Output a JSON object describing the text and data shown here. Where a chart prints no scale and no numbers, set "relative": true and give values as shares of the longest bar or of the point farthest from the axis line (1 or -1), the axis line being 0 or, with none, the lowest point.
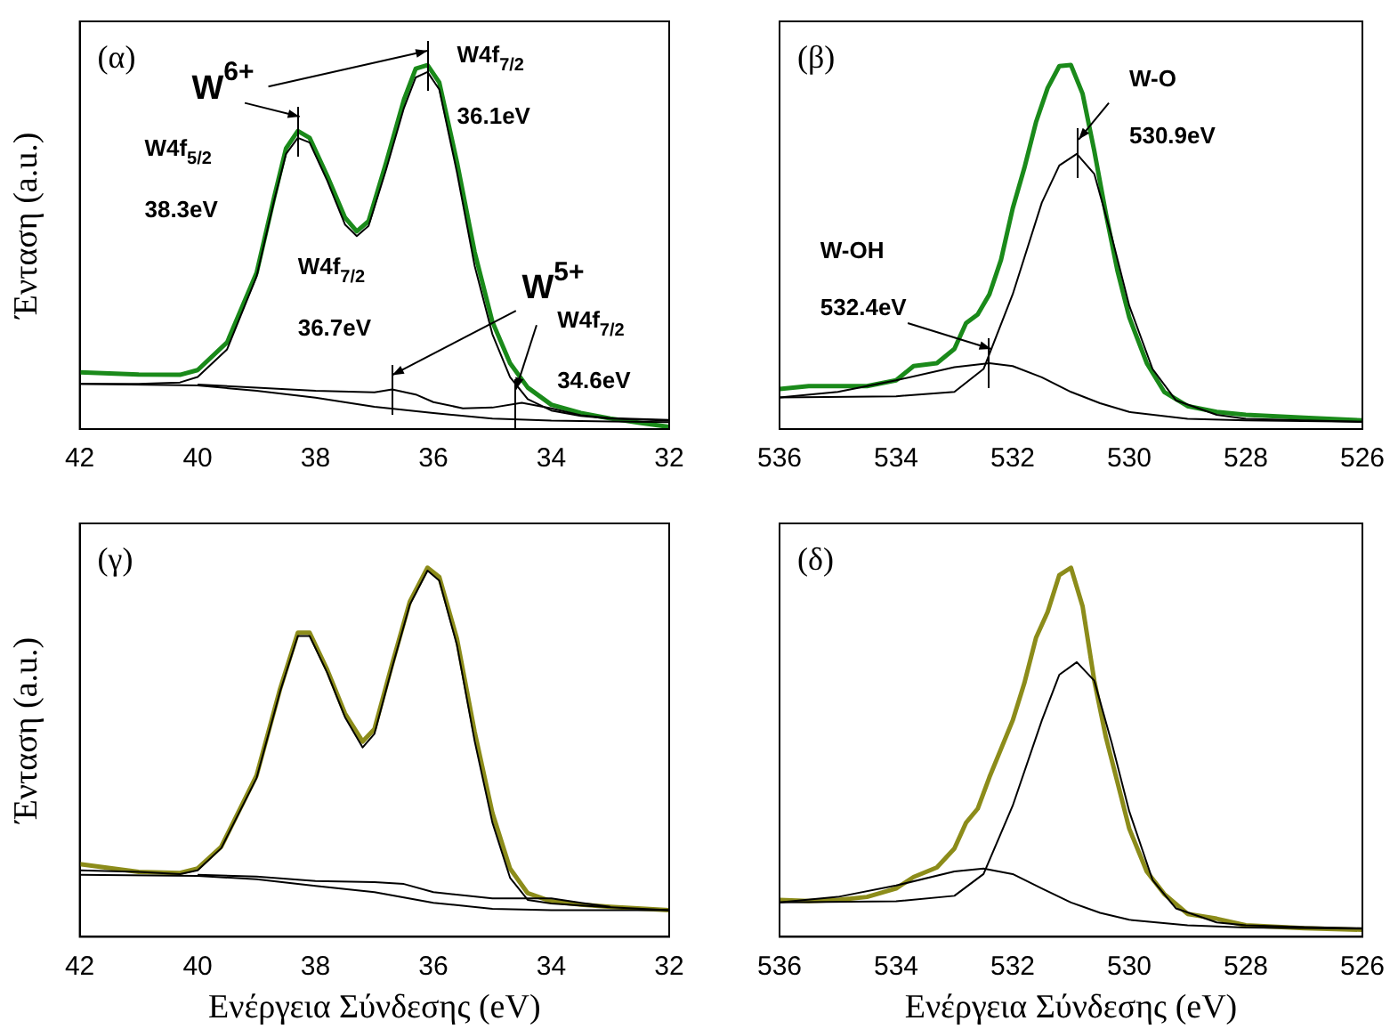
{
  "chart_data": [
    {
      "type": "line",
      "title": "(α)",
      "ylabel": "Ένταση (a.u.)",
      "relative": true,
      "xlim": [
        42,
        32
      ],
      "xticks": [
        42,
        40,
        38,
        36,
        34,
        32
      ],
      "marker": "none",
      "annotations": [
        {
          "text": "W$^{6+}$",
          "x": 38.3,
          "y": 0.819
        },
        "W4f$_{5/2}$",
        "38.3eV",
        "W4f$_{7/2}$",
        {
          "text": "36.1eV",
          "x": 36.1,
          "y": 1
        },
        "W$^{5+}$",
        "W4f$_{7/2}$",
        {
          "text": "36.7eV",
          "x": 36.7,
          "y": 0.109
        },
        "W4f$_{7/2}$",
        {
          "text": "34.6eV",
          "x": 34.6,
          "y": 0.07
        }
      ],
      "series": [
        {
          "color": "#1a8a1a",
          "x": [
            42,
            41,
            40.3,
            40,
            39.5,
            39,
            38.7,
            38.5,
            38.3,
            38.1,
            37.8,
            37.5,
            37.3,
            37.1,
            36.8,
            36.5,
            36.3,
            36.1,
            35.9,
            35.6,
            35.3,
            35,
            34.7,
            34.4,
            34,
            33.5,
            33,
            32.5,
            32
          ],
          "values": [
            0.156,
            0.15,
            0.149,
            0.162,
            0.238,
            0.429,
            0.638,
            0.771,
            0.819,
            0.8,
            0.695,
            0.581,
            0.543,
            0.571,
            0.733,
            0.905,
            0.99,
            1,
            0.952,
            0.733,
            0.486,
            0.295,
            0.181,
            0.114,
            0.067,
            0.044,
            0.029,
            0.017,
            0.006
          ]
        },
        {
          "color": "#000000",
          "x": [
            42,
            41,
            40.3,
            40,
            39.5,
            39,
            38.7,
            38.5,
            38.3,
            38.1,
            37.8,
            37.5,
            37.3,
            37.1,
            36.8,
            36.5,
            36.3,
            36.1,
            35.9,
            35.6,
            35.3,
            35,
            34.7,
            34.4,
            34,
            33.5,
            33,
            32
          ],
          "values": [
            0.124,
            0.124,
            0.128,
            0.143,
            0.219,
            0.419,
            0.629,
            0.756,
            0.8,
            0.787,
            0.682,
            0.562,
            0.53,
            0.558,
            0.714,
            0.882,
            0.966,
            0.981,
            0.933,
            0.705,
            0.448,
            0.261,
            0.143,
            0.082,
            0.051,
            0.036,
            0.029,
            0.023
          ]
        },
        {
          "color": "#000000",
          "x": [
            40,
            39,
            38,
            37,
            36.7,
            36.3,
            36,
            35.5,
            35,
            34.5,
            34,
            33.5,
            33,
            32
          ],
          "values": [
            0.122,
            0.114,
            0.105,
            0.101,
            0.109,
            0.095,
            0.074,
            0.057,
            0.059,
            0.072,
            0.057,
            0.038,
            0.03,
            0.025
          ]
        },
        {
          "color": "#000000",
          "x": [
            42,
            40,
            39,
            38,
            37,
            36,
            35,
            34,
            33,
            32
          ],
          "values": [
            0.124,
            0.12,
            0.105,
            0.086,
            0.061,
            0.044,
            0.029,
            0.023,
            0.021,
            0.019
          ]
        }
      ]
    },
    {
      "type": "line",
      "title": "(β)",
      "relative": true,
      "xlim": [
        536,
        526
      ],
      "xticks": [
        536,
        534,
        532,
        530,
        528,
        526
      ],
      "marker": "none",
      "annotations": [
        "W-O",
        {
          "text": "530.9eV",
          "x": 530.9,
          "y": 0.756
        },
        "W-OH",
        {
          "text": "532.4eV",
          "x": 532.4,
          "y": 0.181
        }
      ],
      "series": [
        {
          "color": "#1a8a1a",
          "x": [
            536,
            535.5,
            535,
            534.5,
            534,
            533.7,
            533.3,
            533,
            532.8,
            532.6,
            532.4,
            532.2,
            532,
            531.8,
            531.6,
            531.4,
            531.2,
            531,
            530.8,
            530.6,
            530.4,
            530.2,
            530,
            529.7,
            529.4,
            529,
            528.5,
            528,
            527,
            526
          ],
          "values": [
            0.11,
            0.118,
            0.118,
            0.118,
            0.134,
            0.173,
            0.181,
            0.22,
            0.291,
            0.315,
            0.37,
            0.465,
            0.606,
            0.717,
            0.843,
            0.937,
            0.997,
            1,
            0.921,
            0.764,
            0.591,
            0.433,
            0.307,
            0.181,
            0.102,
            0.063,
            0.047,
            0.039,
            0.031,
            0.024
          ]
        },
        {
          "color": "#000000",
          "x": [
            536,
            534,
            533,
            532.5,
            532,
            531.5,
            531.2,
            530.9,
            530.6,
            530.3,
            530,
            529.6,
            529.2,
            528.5,
            528,
            527,
            526
          ],
          "values": [
            0.087,
            0.09,
            0.102,
            0.165,
            0.37,
            0.622,
            0.724,
            0.756,
            0.701,
            0.528,
            0.339,
            0.165,
            0.079,
            0.039,
            0.028,
            0.024,
            0.02
          ]
        },
        {
          "color": "#000000",
          "x": [
            536,
            535,
            534,
            533,
            532.4,
            532,
            531.5,
            531,
            530.5,
            530,
            529,
            528,
            526
          ],
          "values": [
            0.087,
            0.102,
            0.134,
            0.17,
            0.181,
            0.173,
            0.142,
            0.102,
            0.071,
            0.047,
            0.028,
            0.024,
            0.02
          ]
        }
      ]
    },
    {
      "type": "line",
      "title": "(γ)",
      "ylabel": "Ένταση (a.u.)",
      "xlabel": "Ενέργεια Σύνδεσης (eV)",
      "relative": true,
      "xlim": [
        42,
        32
      ],
      "xticks": [
        42,
        40,
        38,
        36,
        34,
        32
      ],
      "marker": "none",
      "series": [
        {
          "color": "#8c8c1a",
          "x": [
            42,
            41,
            40.3,
            40,
            39.6,
            39,
            38.6,
            38.3,
            38.1,
            37.8,
            37.5,
            37.2,
            37,
            36.7,
            36.4,
            36.1,
            35.9,
            35.6,
            35.3,
            35,
            34.7,
            34.4,
            34,
            33.5,
            33,
            32
          ],
          "values": [
            0.197,
            0.176,
            0.173,
            0.185,
            0.244,
            0.437,
            0.672,
            0.824,
            0.824,
            0.723,
            0.605,
            0.529,
            0.563,
            0.739,
            0.908,
            1,
            0.975,
            0.807,
            0.555,
            0.336,
            0.185,
            0.118,
            0.096,
            0.087,
            0.081,
            0.072
          ]
        },
        {
          "color": "#000000",
          "x": [
            42,
            41,
            40.3,
            40,
            39.6,
            39,
            38.6,
            38.3,
            38.1,
            37.8,
            37.5,
            37.2,
            37,
            36.7,
            36.4,
            36.1,
            35.9,
            35.6,
            35.3,
            35,
            34.7,
            34.4,
            34,
            33.5,
            33,
            32
          ],
          "values": [
            0.18,
            0.176,
            0.17,
            0.18,
            0.24,
            0.43,
            0.665,
            0.815,
            0.815,
            0.715,
            0.595,
            0.513,
            0.55,
            0.73,
            0.9,
            0.992,
            0.965,
            0.79,
            0.53,
            0.31,
            0.16,
            0.1,
            0.09,
            0.085,
            0.08,
            0.072
          ]
        },
        {
          "color": "#000000",
          "x": [
            40,
            39,
            38,
            37,
            36.5,
            36,
            35,
            34,
            33.5,
            33
          ],
          "values": [
            0.168,
            0.163,
            0.151,
            0.148,
            0.143,
            0.121,
            0.104,
            0.104,
            0.092,
            0.081
          ]
        },
        {
          "color": "#000000",
          "x": [
            42,
            40,
            39,
            38,
            37,
            36,
            35,
            34,
            32
          ],
          "values": [
            0.168,
            0.165,
            0.156,
            0.138,
            0.121,
            0.092,
            0.076,
            0.072,
            0.072
          ]
        }
      ]
    },
    {
      "type": "line",
      "title": "(δ)",
      "xlabel": "Ενέργεια Σύνδεσης (eV)",
      "relative": true,
      "xlim": [
        536,
        526
      ],
      "xticks": [
        536,
        534,
        532,
        530,
        528,
        526
      ],
      "marker": "none",
      "series": [
        {
          "color": "#8c8c1a",
          "x": [
            536,
            535.5,
            535,
            534.5,
            534,
            533.7,
            533.3,
            533,
            532.8,
            532.6,
            532.4,
            532.2,
            532,
            531.8,
            531.6,
            531.4,
            531.2,
            531,
            530.8,
            530.6,
            530.4,
            530.2,
            530,
            529.7,
            529.4,
            529,
            528.5,
            528,
            527,
            526
          ],
          "values": [
            0.1,
            0.097,
            0.1,
            0.108,
            0.131,
            0.162,
            0.188,
            0.239,
            0.309,
            0.347,
            0.432,
            0.509,
            0.586,
            0.687,
            0.81,
            0.88,
            0.98,
            1,
            0.895,
            0.694,
            0.54,
            0.417,
            0.293,
            0.177,
            0.116,
            0.062,
            0.049,
            0.031,
            0.023,
            0.019
          ]
        },
        {
          "color": "#000000",
          "x": [
            536,
            534,
            533,
            532.5,
            532,
            531.5,
            531.2,
            530.9,
            530.6,
            530.3,
            530,
            529.6,
            529.2,
            528.5,
            528,
            527,
            526
          ],
          "values": [
            0.093,
            0.096,
            0.111,
            0.17,
            0.355,
            0.586,
            0.71,
            0.744,
            0.694,
            0.525,
            0.34,
            0.154,
            0.077,
            0.039,
            0.031,
            0.026,
            0.023
          ]
        },
        {
          "color": "#000000",
          "x": [
            536,
            535,
            534,
            533,
            532.5,
            532,
            531.5,
            531,
            530.5,
            530,
            529,
            528,
            526
          ],
          "values": [
            0.093,
            0.108,
            0.139,
            0.177,
            0.185,
            0.17,
            0.131,
            0.093,
            0.065,
            0.046,
            0.031,
            0.025,
            0.022
          ]
        }
      ]
    }
  ]
}
